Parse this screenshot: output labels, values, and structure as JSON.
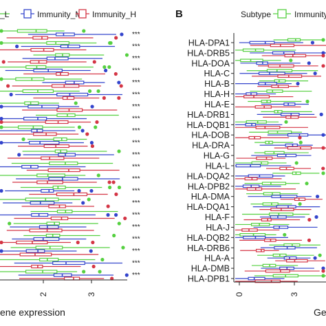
{
  "chart_data": [
    {
      "type": "box",
      "orientation": "horizontal",
      "legend": {
        "title": "",
        "items": [
          "_L",
          "Immunity_M",
          "Immunity_H"
        ],
        "placement": "top"
      },
      "series": [
        {
          "name": "Immunity_L",
          "color": "#55d040"
        },
        {
          "name": "Immunity_M",
          "color": "#3344cc"
        },
        {
          "name": "Immunity_H",
          "color": "#d43545"
        }
      ],
      "xlabel": "ene expression",
      "xticks": [
        "2",
        "3"
      ],
      "xlim": [
        0.6,
        3.6
      ],
      "significance": [
        "***",
        "***",
        "***",
        "***",
        "***",
        "***",
        "***",
        "***",
        "***",
        "***",
        "***",
        "***",
        "***",
        "***",
        "***",
        "***",
        "***",
        "***",
        "***",
        "***",
        "***"
      ]
    },
    {
      "type": "box",
      "orientation": "horizontal",
      "panel_label": "B",
      "legend": {
        "title": "Subtype",
        "items": [
          "Immunity"
        ],
        "placement": "top"
      },
      "series": [
        {
          "name": "Immunity",
          "color": "#55d040"
        }
      ],
      "categories": [
        "HLA-DPA1",
        "HLA-DRB5",
        "HLA-DOA",
        "HLA-C",
        "HLA-B",
        "HLA-H",
        "HLA-E",
        "HLA-DRB1",
        "HLA-DQB1",
        "HLA-DOB",
        "HLA-DRA",
        "HLA-G",
        "HLA-L",
        "HLA-DQA2",
        "HLA-DPB2",
        "HLA-DMA",
        "HLA-DQA1",
        "HLA-F",
        "HLA-J",
        "HLA-DQB2",
        "HLA-DRB6",
        "HLA-A",
        "HLA-DMB",
        "HLA-DPB1"
      ],
      "xlabel": "Ge",
      "xticks": [
        "0",
        "3"
      ],
      "xlim": [
        -0.2,
        4.0
      ]
    }
  ]
}
